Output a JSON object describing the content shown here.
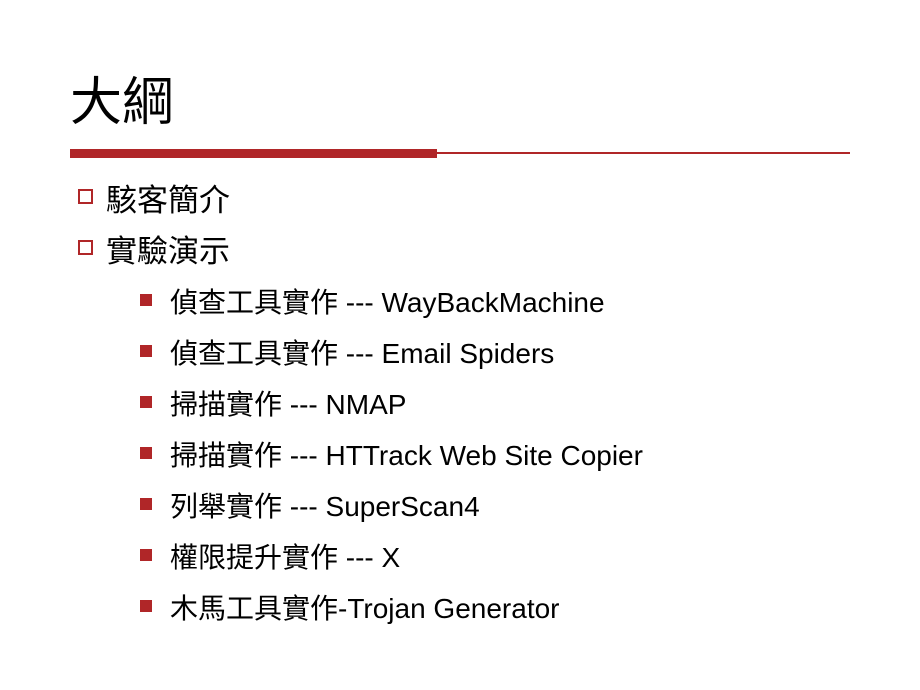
{
  "slide": {
    "title": "大綱",
    "accent_color": "#b02628",
    "background_color": "#ffffff",
    "text_color": "#000000",
    "title_fontsize": 52,
    "body_fontsize": 31,
    "sub_fontsize": 28,
    "items": [
      {
        "label": "駭客簡介"
      },
      {
        "label": "實驗演示"
      }
    ],
    "subitems": [
      {
        "label": "偵查工具實作 --- WayBackMachine"
      },
      {
        "label": "偵查工具實作 --- Email Spiders"
      },
      {
        "label": "掃描實作 --- NMAP"
      },
      {
        "label": "掃描實作 --- HTTrack Web Site Copier"
      },
      {
        "label": "列舉實作 --- SuperScan4"
      },
      {
        "label": "權限提升實作 --- X"
      },
      {
        "label": "木馬工具實作-Trojan Generator"
      }
    ]
  }
}
